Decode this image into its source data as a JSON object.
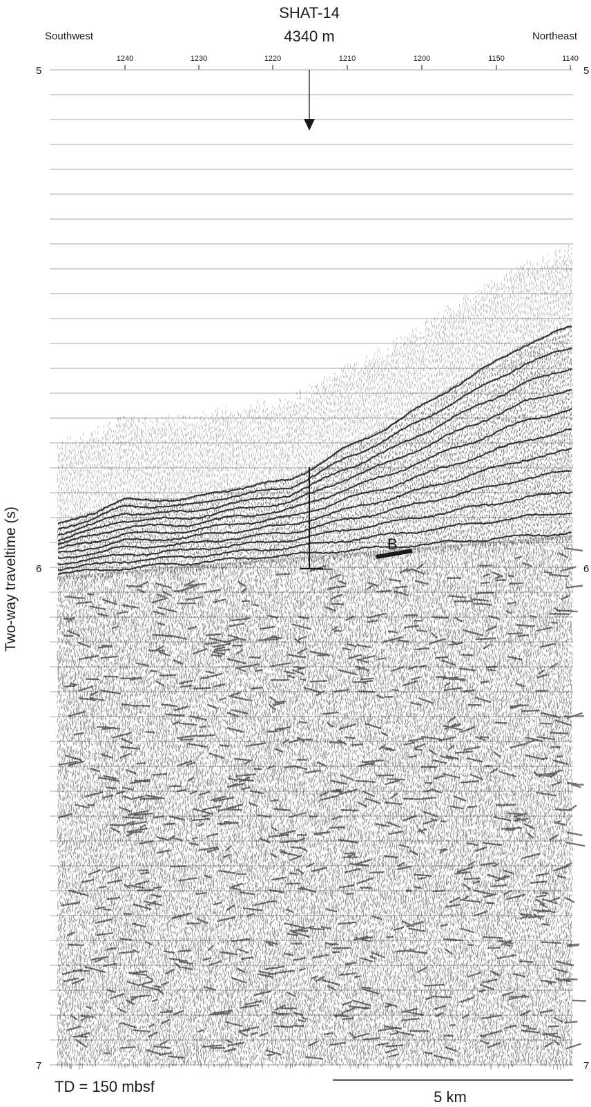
{
  "figure": {
    "title": "SHAT-14",
    "water_depth": "4340 m",
    "direction_left": "Southwest",
    "direction_right": "Northeast",
    "cdp_ticks": [
      "1240",
      "1230",
      "1220",
      "1210",
      "1200",
      "1150",
      "1140"
    ],
    "time_labels": {
      "top": "5",
      "middle": "6",
      "bottom": "7"
    },
    "y_axis_label": "Two-way traveltime (s)",
    "total_depth": "TD = 150 mbsf",
    "scale_bar": "5 km",
    "reflector_label": "B"
  },
  "colors": {
    "ink": "#1a1a1a",
    "gridline": "#8a8a8a",
    "background": "#ffffff"
  },
  "icons": {
    "site_marker": "down-arrow-icon",
    "borehole": "borehole-t-icon"
  }
}
